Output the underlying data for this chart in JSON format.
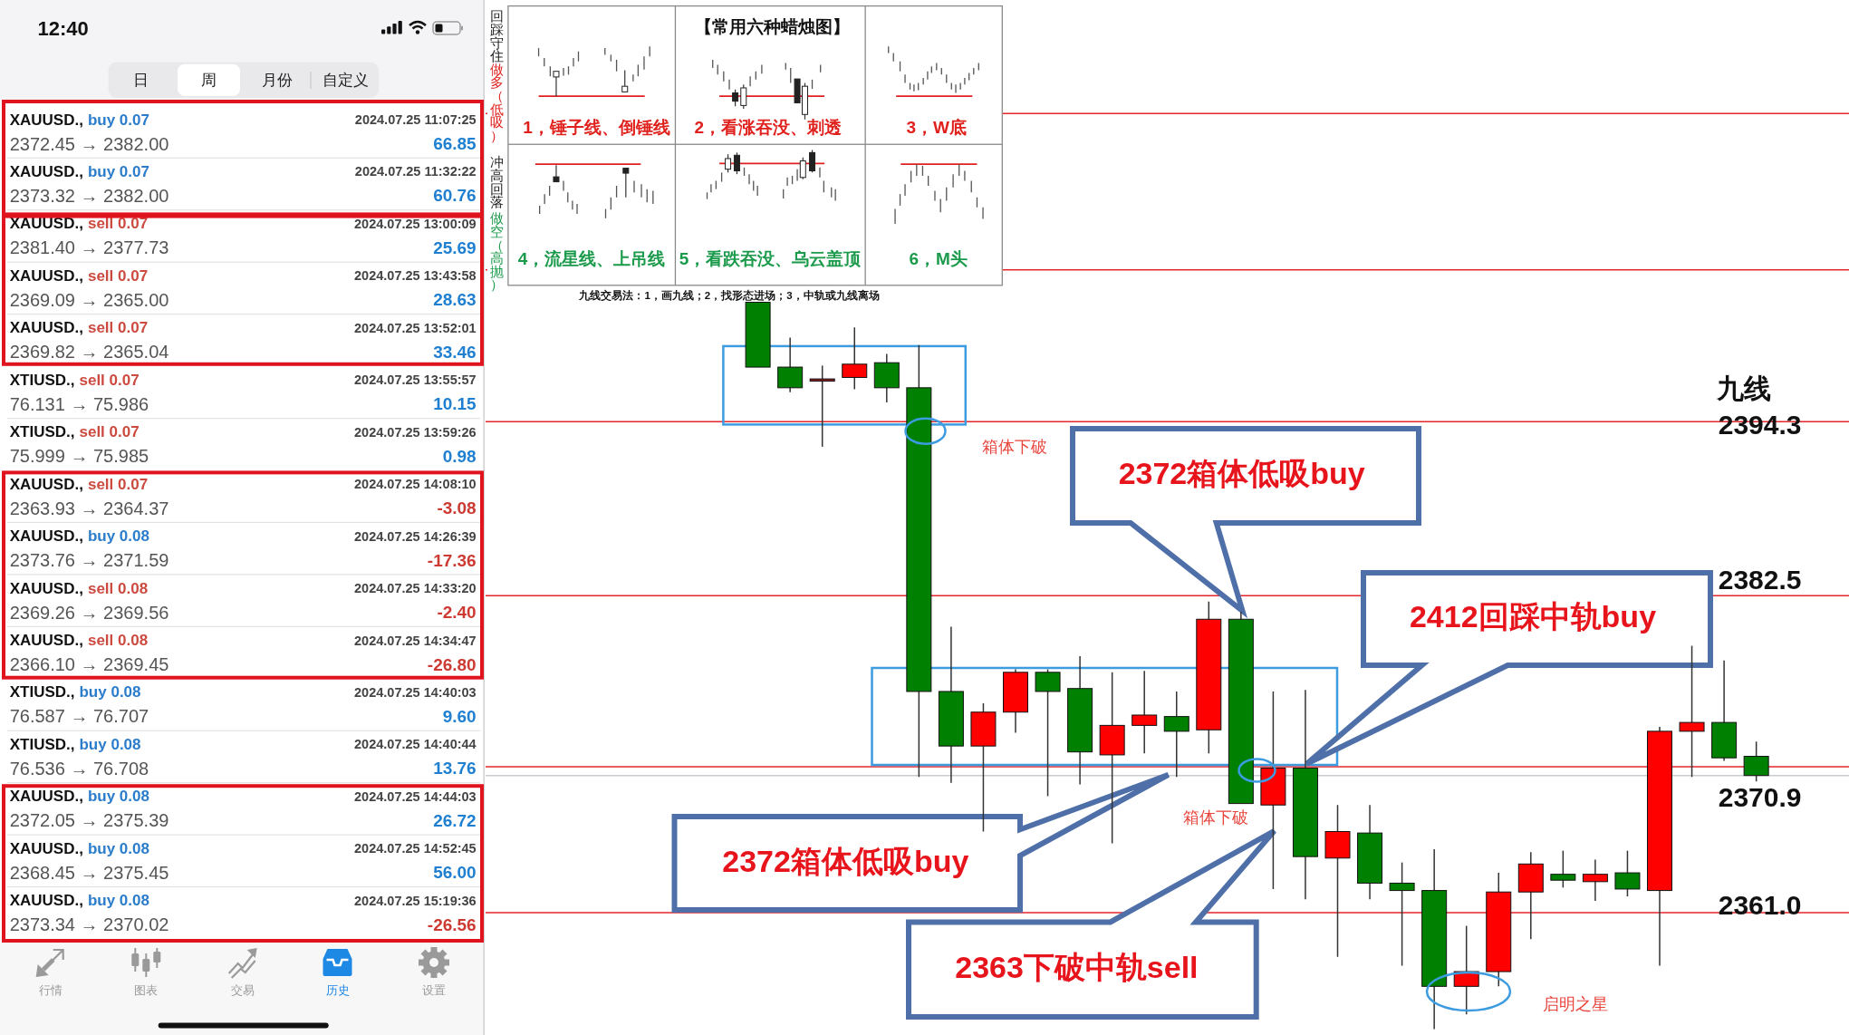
{
  "chart_data": [
    {
      "type": "other",
      "annotations": [
        "12:40",
        "日",
        "周",
        "月份",
        "自定义",
        "XAUUSD.,",
        "buy 0.07",
        "2024.07.25 11:07:25",
        "2372.45 → 2382.00",
        "66.85",
        "XAUUSD.,",
        "buy 0.07",
        "2024.07.25 11:32:22",
        "2373.32 → 2382.00",
        "60.76",
        "XAUUSD.,",
        "sell 0.07",
        "2024.07.25 13:00:09",
        "2381.40 → 2377.73",
        "25.69",
        "XAUUSD.,",
        "sell 0.07",
        "2024.07.25 13:43:58",
        "2369.09 → 2365.00",
        "28.63",
        "XAUUSD.,",
        "sell 0.07",
        "2024.07.25 13:52:01",
        "2369.82 → 2365.04",
        "33.46",
        "XTIUSD.,",
        "sell 0.07",
        "2024.07.25 13:55:57",
        "76.131 → 75.986",
        "10.15",
        "XTIUSD.,",
        "sell 0.07",
        "2024.07.25 13:59:26",
        "75.999 → 75.985",
        "0.98",
        "XAUUSD.,",
        "sell 0.07",
        "2024.07.25 14:08:10",
        "2363.93 → 2364.37",
        "-3.08",
        "XAUUSD.,",
        "buy 0.08",
        "2024.07.25 14:26:39",
        "2373.76 → 2371.59",
        "-17.36",
        "XAUUSD.,",
        "sell 0.08",
        "2024.07.25 14:33:20",
        "2369.26 → 2369.56",
        "-2.40",
        "XAUUSD.,",
        "sell 0.08",
        "2024.07.25 14:34:47",
        "2366.10 → 2369.45",
        "-26.80",
        "XTIUSD.,",
        "buy 0.08",
        "2024.07.25 14:40:03",
        "76.587 → 76.707",
        "9.60",
        "XTIUSD.,",
        "buy 0.08",
        "2024.07.25 14:40:44",
        "76.536 → 76.708",
        "13.76",
        "XAUUSD.,",
        "buy 0.08",
        "2024.07.25 14:44:03",
        "2372.05 → 2375.39",
        "26.72",
        "XAUUSD.,",
        "buy 0.08",
        "2024.07.25 14:52:45",
        "2368.45 → 2375.45",
        "56.00",
        "XAUUSD.,",
        "buy 0.08",
        "2024.07.25 15:19:36",
        "2373.34 → 2370.02",
        "-26.56",
        "行情",
        "图表",
        "交易",
        "历史",
        "设置"
      ],
      "colors": [
        "#111111",
        "#222222",
        "#222222",
        "#222222",
        "#222222",
        "#111111",
        "#2b7dcc",
        "#444444",
        "#555555",
        "#1f7fd0",
        "#111111",
        "#2b7dcc",
        "#444444",
        "#555555",
        "#1f7fd0",
        "#111111",
        "#cc4a3f",
        "#444444",
        "#555555",
        "#1f7fd0",
        "#111111",
        "#cc4a3f",
        "#444444",
        "#555555",
        "#1f7fd0",
        "#111111",
        "#cc4a3f",
        "#444444",
        "#555555",
        "#1f7fd0",
        "#111111",
        "#cc4a3f",
        "#444444",
        "#555555",
        "#1f7fd0",
        "#111111",
        "#cc4a3f",
        "#444444",
        "#555555",
        "#1f7fd0",
        "#111111",
        "#cc4a3f",
        "#444444",
        "#555555",
        "#cc3a32",
        "#111111",
        "#2b7dcc",
        "#444444",
        "#555555",
        "#cc3a32",
        "#111111",
        "#cc4a3f",
        "#444444",
        "#555555",
        "#cc3a32",
        "#111111",
        "#cc4a3f",
        "#444444",
        "#555555",
        "#cc3a32",
        "#111111",
        "#2b7dcc",
        "#444444",
        "#555555",
        "#1f7fd0",
        "#111111",
        "#2b7dcc",
        "#444444",
        "#555555",
        "#1f7fd0",
        "#111111",
        "#2b7dcc",
        "#444444",
        "#555555",
        "#1f7fd0",
        "#111111",
        "#2b7dcc",
        "#444444",
        "#555555",
        "#1f7fd0",
        "#111111",
        "#2b7dcc",
        "#444444",
        "#555555",
        "#cc3a32",
        "#9a9a9a",
        "#9a9a9a",
        "#9a9a9a",
        "#1e88e5",
        "#9a9a9a"
      ]
    },
    {
      "type": "other",
      "title": "【常用六种蜡烛图】",
      "annotations": [
        "1，锤子线、倒锤线",
        "2，看涨吞没、刺透",
        "3，W底",
        "4，流星线、上吊线",
        "5，看跌吞没、乌云盖顶",
        "6，M头",
        "回踩守住",
        "做多（低吸）",
        "冲高回落",
        "做空（高抛）",
        "九线交易法：1，画九线；2，找形态进场；3，中轨或九线离场"
      ],
      "colors": [
        "#e0201c",
        "#e0201c",
        "#e0201c",
        "#1a9a4a",
        "#1a9a4a",
        "#1a9a4a",
        "#222222",
        "#e0201c",
        "#222222",
        "#1a9a4a",
        "#111111"
      ]
    },
    {
      "type": "candlestick",
      "categories": [
        null,
        null,
        null,
        null,
        null,
        null,
        null,
        null,
        null,
        null,
        null,
        null,
        null,
        null,
        null,
        null,
        null,
        null,
        null,
        null,
        null,
        null,
        null,
        null,
        null,
        null,
        null,
        null,
        null,
        null,
        null,
        null
      ],
      "ohlc": [
        [
          2402.4,
          2402.4,
          2398.0,
          2398.0
        ],
        [
          2398.0,
          2400.0,
          2396.3,
          2396.6
        ],
        [
          2397.2,
          2398.1,
          2392.6,
          2397.2
        ],
        [
          2397.3,
          2400.7,
          2396.5,
          2398.2
        ],
        [
          2398.3,
          2398.9,
          2395.6,
          2396.6
        ],
        [
          2396.6,
          2399.5,
          2370.2,
          2376.0
        ],
        [
          2376.0,
          2380.4,
          2369.8,
          2372.3
        ],
        [
          2372.3,
          2375.2,
          2366.5,
          2374.6
        ],
        [
          2374.6,
          2377.5,
          2373.2,
          2377.3
        ],
        [
          2377.3,
          2377.5,
          2368.9,
          2376.0
        ],
        [
          2376.2,
          2378.4,
          2369.7,
          2371.9
        ],
        [
          2371.7,
          2377.3,
          2365.7,
          2373.7
        ],
        [
          2373.7,
          2377.4,
          2371.8,
          2374.4
        ],
        [
          2374.3,
          2376.0,
          2370.2,
          2373.3
        ],
        [
          2373.4,
          2382.1,
          2371.8,
          2380.9
        ],
        [
          2380.9,
          2381.4,
          2368.4,
          2368.4
        ],
        [
          2368.3,
          2376.0,
          2362.6,
          2370.8
        ],
        [
          2370.8,
          2376.1,
          2361.9,
          2364.8
        ],
        [
          2364.7,
          2368.3,
          2358.0,
          2366.5
        ],
        [
          2366.4,
          2368.3,
          2361.9,
          2363.0
        ],
        [
          2363.0,
          2364.4,
          2357.4,
          2362.5
        ],
        [
          2362.5,
          2365.3,
          2353.1,
          2356.0
        ],
        [
          2356.0,
          2360.1,
          2354.1,
          2357.0
        ],
        [
          2357.0,
          2363.7,
          2356.0,
          2362.4
        ],
        [
          2362.4,
          2365.1,
          2359.2,
          2364.3
        ],
        [
          2363.6,
          2365.2,
          2362.7,
          2363.2
        ],
        [
          2363.1,
          2364.6,
          2361.8,
          2363.6
        ],
        [
          2363.7,
          2365.2,
          2362.1,
          2362.6
        ],
        [
          2362.5,
          2373.6,
          2357.4,
          2373.3
        ],
        [
          2373.3,
          2379.1,
          2370.2,
          2373.9
        ],
        [
          2373.9,
          2378.1,
          2371.3,
          2371.5
        ],
        [
          2371.6,
          2372.6,
          2369.9,
          2370.3
        ]
      ],
      "colors": [
        "#008000",
        "#008000",
        "#8b1a1a",
        "#ff0000",
        "#008000",
        "#008000",
        "#008000",
        "#ff0000",
        "#ff0000",
        "#008000",
        "#008000",
        "#ff0000",
        "#ff0000",
        "#008000",
        "#ff0000",
        "#008000",
        "#ff0000",
        "#008000",
        "#ff0000",
        "#008000",
        "#008000",
        "#008000",
        "#ff0000",
        "#ff0000",
        "#ff0000",
        "#008000",
        "#ff0000",
        "#008000",
        "#ff0000",
        "#ff0000",
        "#008000",
        "#008000"
      ],
      "ylim": [
        2352.7,
        2422.9
      ],
      "ref_lines": [
        {
          "axis": "y",
          "value": 2415.2,
          "color": "#e3262a"
        },
        {
          "axis": "y",
          "value": 2404.6,
          "color": "#e3262a"
        },
        {
          "axis": "y",
          "value": 2394.3,
          "label": "2394.3",
          "color": "#e3262a"
        },
        {
          "axis": "y",
          "value": 2382.5,
          "label": "2382.5",
          "color": "#e3262a"
        },
        {
          "axis": "y",
          "value": 2370.9,
          "label": "2370.9",
          "color": "#e3262a"
        },
        {
          "axis": "y",
          "value": 2370.3,
          "color": "#c8ccd0"
        },
        {
          "axis": "y",
          "value": 2361.0,
          "label": "2361.0",
          "color": "#e3262a"
        }
      ],
      "annotations": [
        "九线",
        "箱体下破",
        "2372箱体低吸buy",
        "2412回踩中轨buy",
        "箱体下破",
        "2372箱体低吸buy",
        "2363下破中轨sell",
        "启明之星"
      ]
    }
  ]
}
